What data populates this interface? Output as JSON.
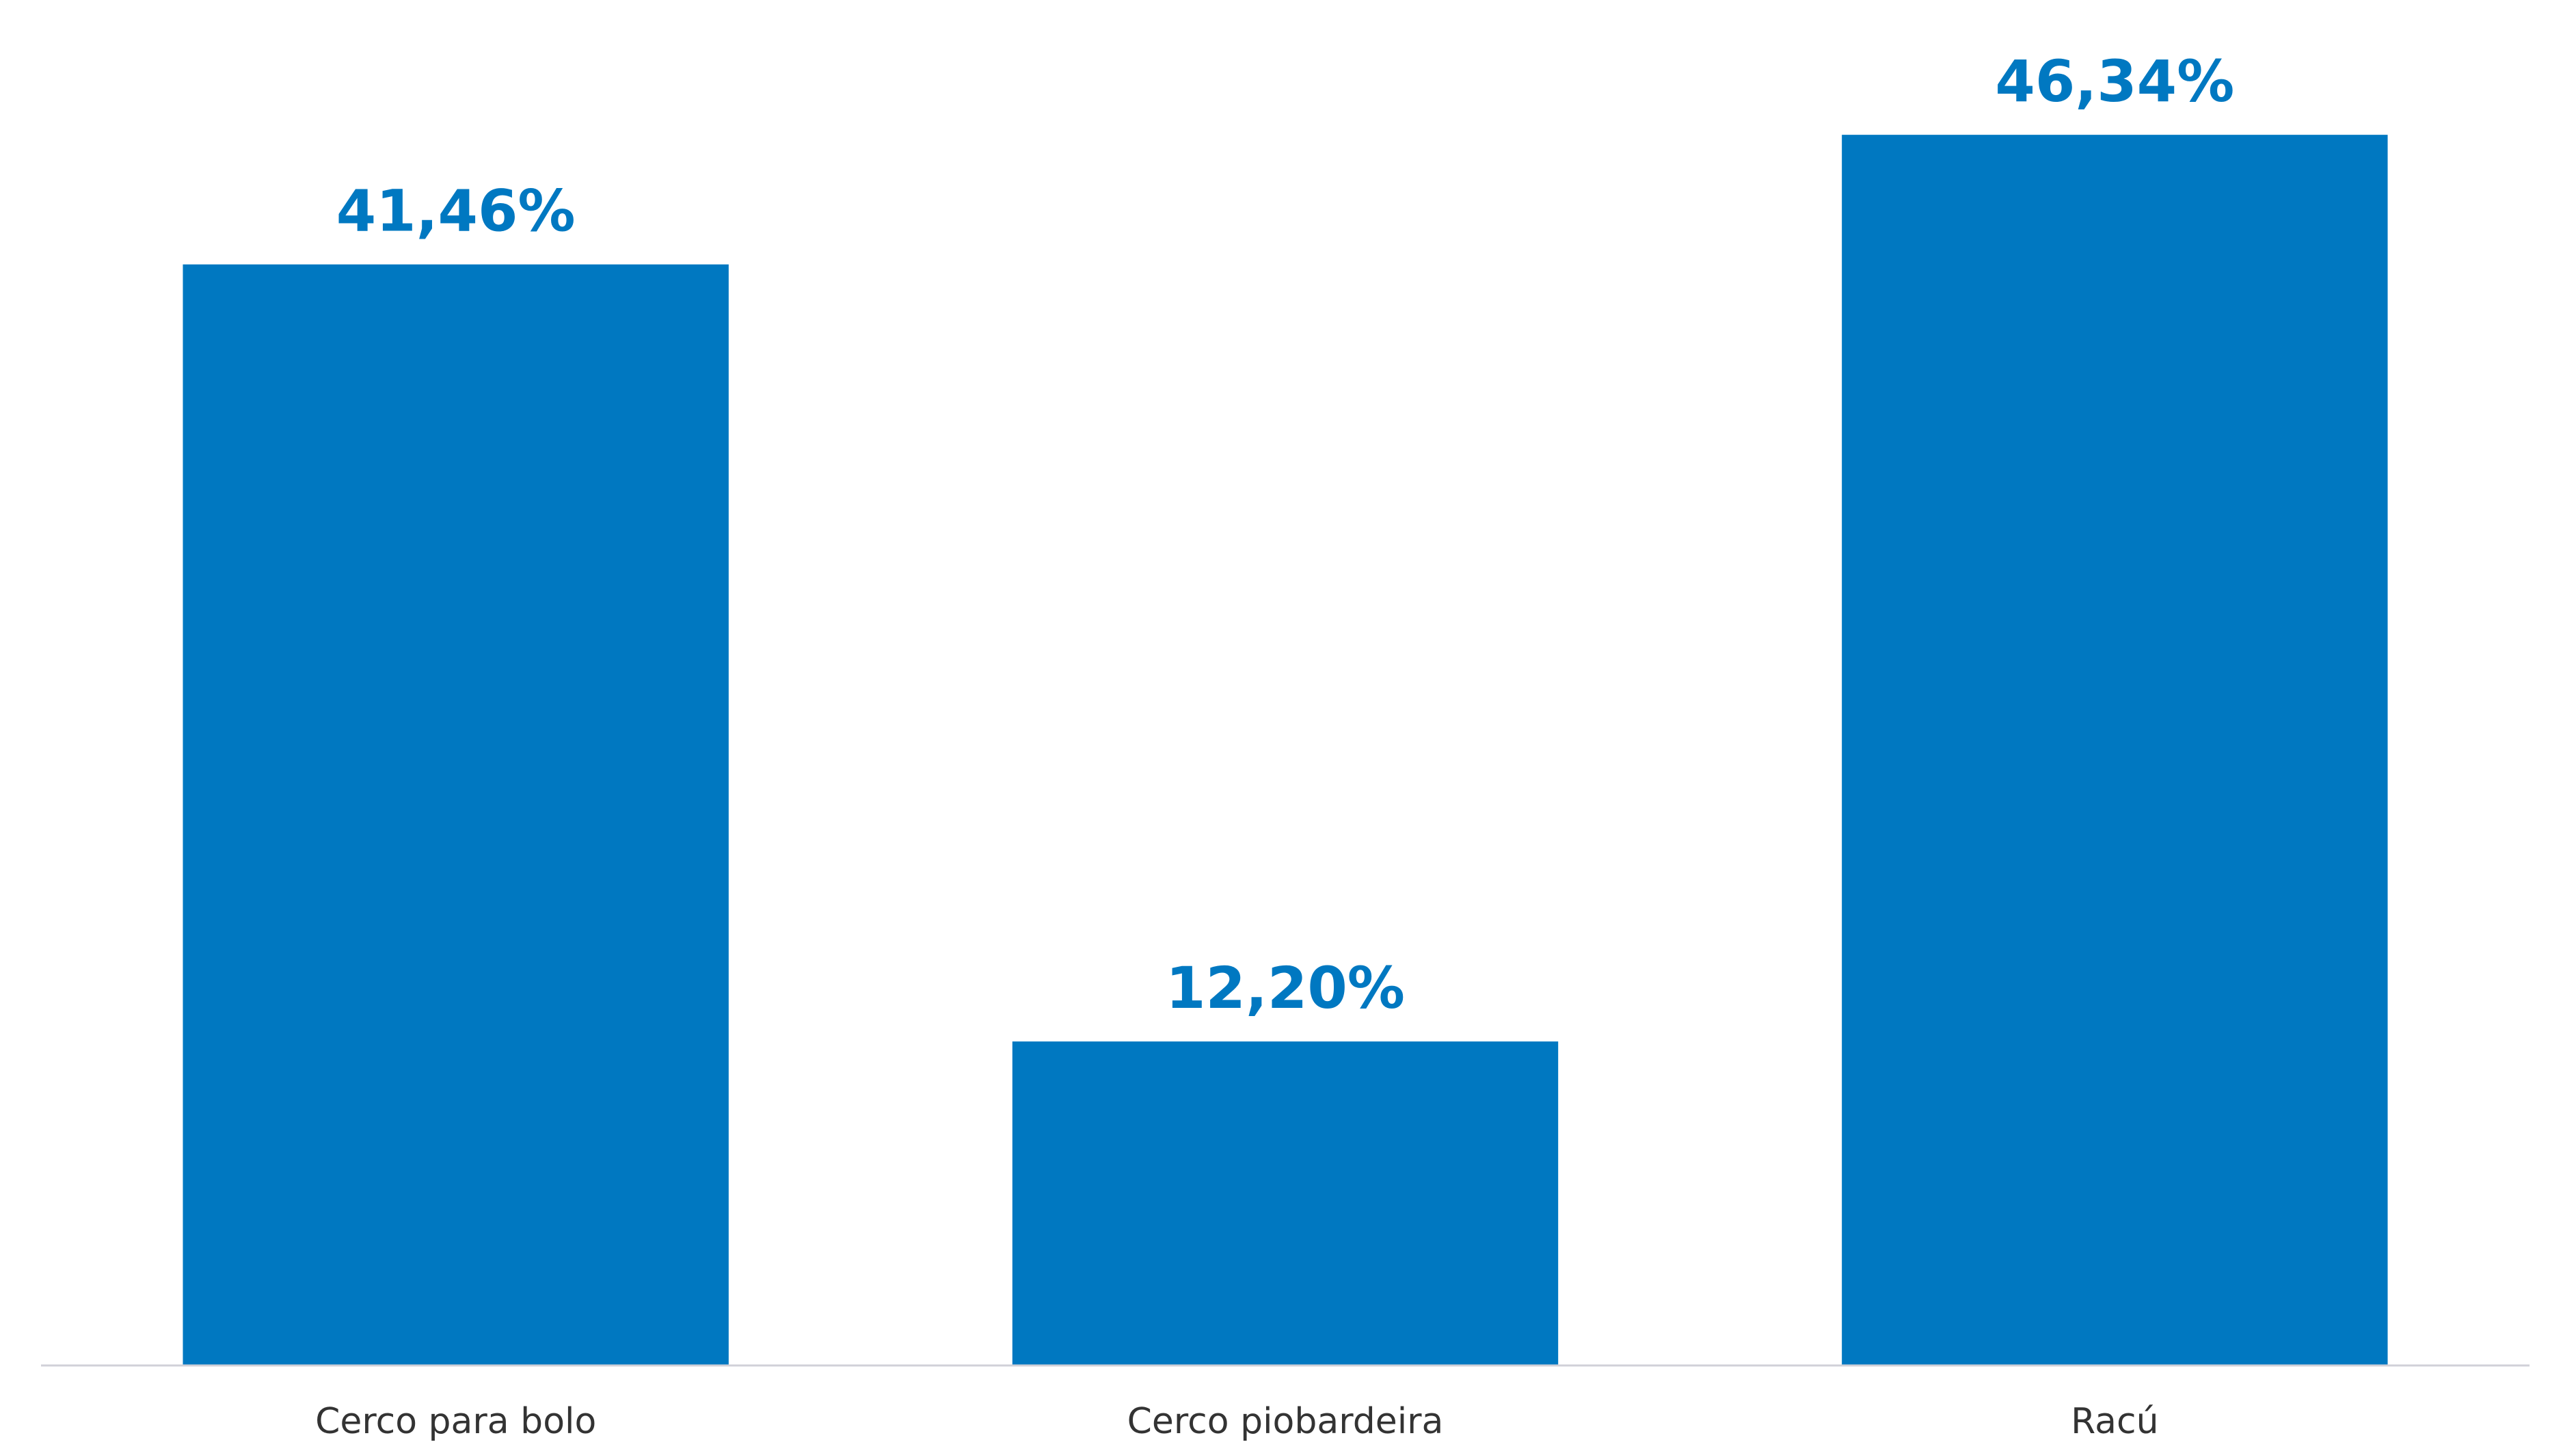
{
  "chart_data": {
    "type": "bar",
    "categories": [
      "Cerco para bolo",
      "Cerco piobardeira",
      "Racú"
    ],
    "values": [
      41.46,
      12.2,
      46.34
    ],
    "value_labels": [
      "41,46%",
      "12,20%",
      "46,34%"
    ],
    "color": "#0078c1",
    "ylim": [
      0,
      50
    ]
  }
}
